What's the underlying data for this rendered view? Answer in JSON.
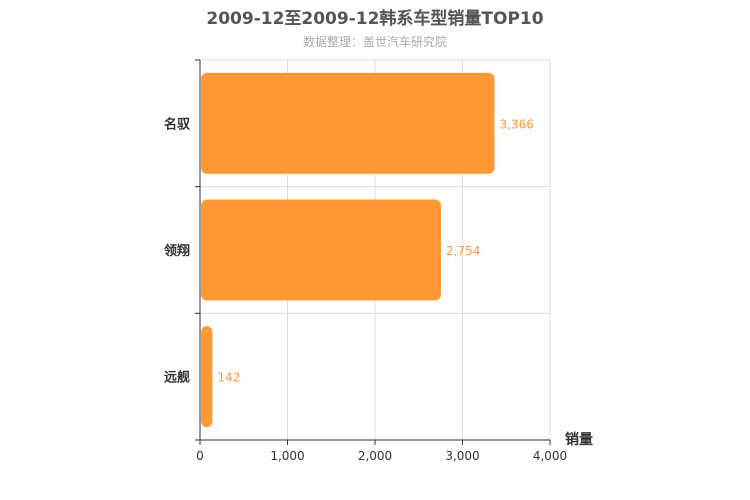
{
  "chart_data": {
    "type": "bar",
    "orientation": "horizontal",
    "title": "2009-12至2009-12韩系车型销量TOP10",
    "subtitle": "数据整理：盖世汽车研究院",
    "xlabel": "销量",
    "categories": [
      "名驭",
      "领翔",
      "远舰"
    ],
    "values": [
      3366,
      2754,
      142
    ],
    "value_labels": [
      "3,366",
      "2,754",
      "142"
    ],
    "xlim": [
      0,
      4000
    ],
    "xticks": [
      0,
      1000,
      2000,
      3000,
      4000
    ],
    "xtick_labels": [
      "0",
      "1,000",
      "2,000",
      "3,000",
      "4,000"
    ],
    "grid": true,
    "colors": {
      "bar": "#ff9933",
      "label": "#ff9933",
      "grid": "#dddddd",
      "axis": "#333333"
    }
  }
}
